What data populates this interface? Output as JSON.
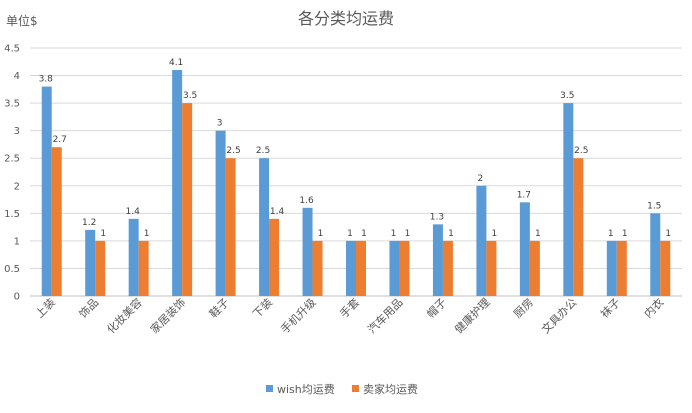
{
  "chart_data": {
    "type": "bar",
    "title": "各分类均运费",
    "ylabel": "单位$",
    "xlabel": "",
    "ylim": [
      0,
      4.5
    ],
    "yticks": [
      "0",
      "0.5",
      "1",
      "1.5",
      "2",
      "2.5",
      "3",
      "3.5",
      "4",
      "4.5"
    ],
    "grid": true,
    "legend_position": "bottom",
    "categories": [
      "上装",
      "饰品",
      "化妆美容",
      "家居装饰",
      "鞋子",
      "下装",
      "手机升级",
      "手套",
      "汽车用品",
      "帽子",
      "健康护理",
      "厨房",
      "文具办公",
      "袜子",
      "内衣"
    ],
    "series": [
      {
        "name": "wish均运费",
        "color": "#5B9BD5",
        "values": [
          3.8,
          1.2,
          1.4,
          4.1,
          3,
          2.5,
          1.6,
          1,
          1,
          1.3,
          2,
          1.7,
          3.5,
          1,
          1.5
        ]
      },
      {
        "name": "卖家均运费",
        "color": "#ED7D31",
        "values": [
          2.7,
          1,
          1,
          3.5,
          2.5,
          1.4,
          1,
          1,
          1,
          1,
          1,
          1,
          2.5,
          1,
          1
        ]
      }
    ]
  }
}
